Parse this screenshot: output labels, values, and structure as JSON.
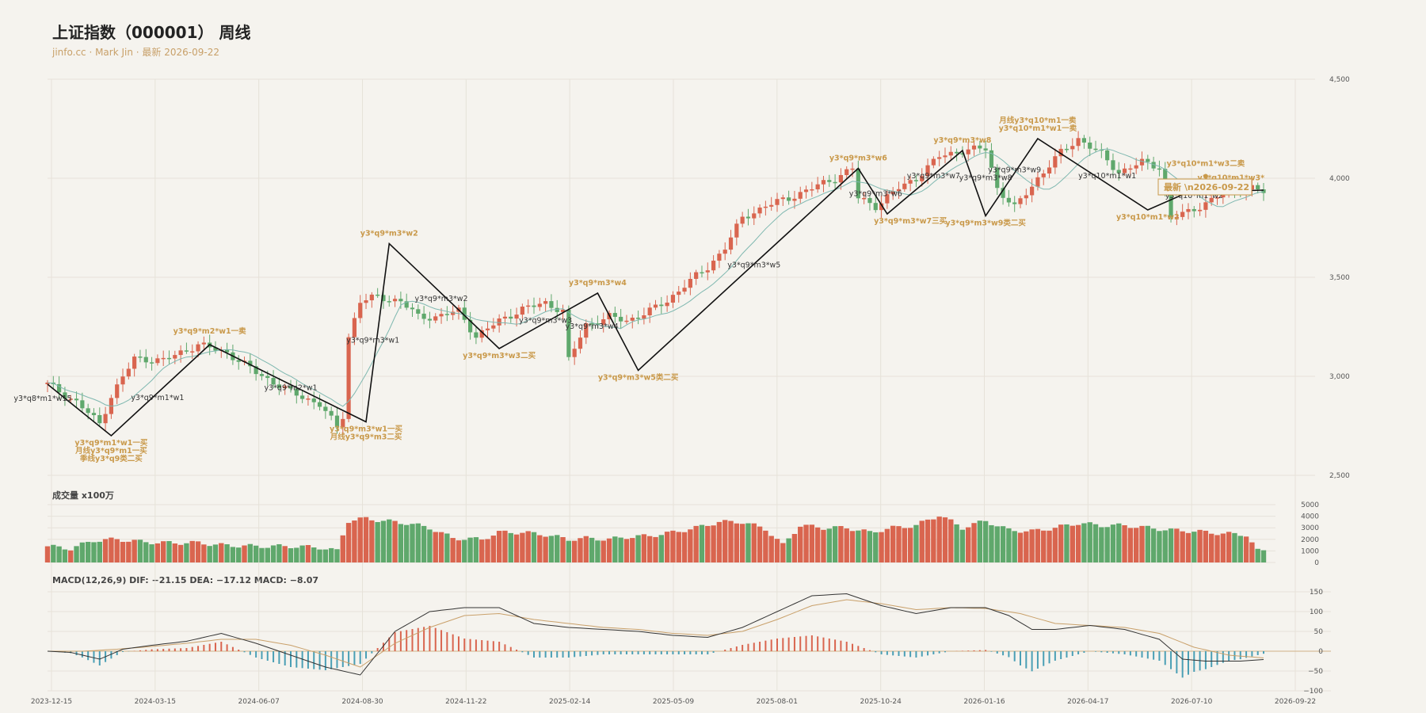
{
  "title": "上证指数（000001） 周线",
  "subtitle": "jinfo.cc · Mark Jin · 最新 2026-09-22",
  "volume_label": "成交量 x100万",
  "macd_label": "MACD(12,26,9) DIF: −21.15 DEA: −17.12 MACD: −8.07",
  "latest_badge": "最新 \\n2026-09-22",
  "colors": {
    "up": "#d9654f",
    "down": "#5fa86c",
    "ma": "#7fb8b0",
    "stroke": "#111111",
    "gold": "#c9994a",
    "dif": "#333333",
    "dea": "#c9a06a",
    "hist_pos": "#d9654f",
    "hist_neg": "#4a9fb5",
    "bg": "#f5f3ee",
    "grid": "#e6e2d9"
  },
  "chart_data": {
    "type": "candlestick",
    "price_axis": {
      "ticks": [
        2500,
        3000,
        3500,
        4000,
        4500
      ],
      "ylim": [
        2500,
        4500
      ]
    },
    "volume_axis": {
      "ticks": [
        0,
        1000,
        2000,
        3000,
        4000,
        5000
      ],
      "ylim": [
        0,
        5000
      ]
    },
    "macd_axis": {
      "ticks": [
        -100,
        -50,
        0,
        50,
        100,
        150
      ],
      "ylim": [
        -100,
        150
      ]
    },
    "date_ticks": [
      "2023-12-15",
      "2024-03-15",
      "2024-06-07",
      "2024-08-30",
      "2024-11-22",
      "2025-02-14",
      "2025-05-09",
      "2025-08-01",
      "2025-10-24",
      "2026-01-16",
      "2026-04-17",
      "2026-07-10",
      "2026-09-22"
    ],
    "close_anchors": [
      [
        0,
        2960
      ],
      [
        5,
        2870
      ],
      [
        9,
        2760
      ],
      [
        11,
        2900
      ],
      [
        15,
        3090
      ],
      [
        20,
        3080
      ],
      [
        26,
        3160
      ],
      [
        31,
        3120
      ],
      [
        36,
        3020
      ],
      [
        42,
        2920
      ],
      [
        47,
        2860
      ],
      [
        50,
        2740
      ],
      [
        51,
        2800
      ],
      [
        52,
        3200
      ],
      [
        54,
        3380
      ],
      [
        57,
        3400
      ],
      [
        61,
        3380
      ],
      [
        64,
        3300
      ],
      [
        67,
        3300
      ],
      [
        71,
        3330
      ],
      [
        74,
        3200
      ],
      [
        78,
        3280
      ],
      [
        82,
        3340
      ],
      [
        86,
        3370
      ],
      [
        89,
        3330
      ],
      [
        90,
        3080
      ],
      [
        93,
        3260
      ],
      [
        97,
        3300
      ],
      [
        100,
        3280
      ],
      [
        104,
        3330
      ],
      [
        107,
        3380
      ],
      [
        110,
        3460
      ],
      [
        114,
        3550
      ],
      [
        117,
        3650
      ],
      [
        120,
        3800
      ],
      [
        124,
        3860
      ],
      [
        128,
        3900
      ],
      [
        132,
        3950
      ],
      [
        136,
        4000
      ],
      [
        139,
        4050
      ],
      [
        140,
        3900
      ],
      [
        143,
        3860
      ],
      [
        147,
        3950
      ],
      [
        150,
        4000
      ],
      [
        154,
        4110
      ],
      [
        158,
        4140
      ],
      [
        162,
        4150
      ],
      [
        164,
        3950
      ],
      [
        167,
        3850
      ],
      [
        171,
        4000
      ],
      [
        175,
        4130
      ],
      [
        178,
        4200
      ],
      [
        182,
        4120
      ],
      [
        185,
        4030
      ],
      [
        189,
        4080
      ],
      [
        192,
        4060
      ],
      [
        194,
        3800
      ],
      [
        197,
        3830
      ],
      [
        201,
        3890
      ],
      [
        204,
        3940
      ],
      [
        208,
        3950
      ],
      [
        210,
        3930
      ]
    ],
    "volume_anchors": [
      [
        0,
        1400
      ],
      [
        4,
        1200
      ],
      [
        8,
        1900
      ],
      [
        12,
        2000
      ],
      [
        16,
        1800
      ],
      [
        20,
        1700
      ],
      [
        26,
        1700
      ],
      [
        30,
        1500
      ],
      [
        36,
        1400
      ],
      [
        42,
        1400
      ],
      [
        47,
        1300
      ],
      [
        50,
        1000
      ],
      [
        51,
        2400
      ],
      [
        52,
        3600
      ],
      [
        55,
        3800
      ],
      [
        58,
        3600
      ],
      [
        62,
        3400
      ],
      [
        66,
        3000
      ],
      [
        70,
        2100
      ],
      [
        75,
        2000
      ],
      [
        78,
        2600
      ],
      [
        82,
        2600
      ],
      [
        86,
        2400
      ],
      [
        90,
        2000
      ],
      [
        93,
        2100
      ],
      [
        97,
        2000
      ],
      [
        100,
        2200
      ],
      [
        104,
        2300
      ],
      [
        108,
        2600
      ],
      [
        112,
        3000
      ],
      [
        116,
        3500
      ],
      [
        120,
        3500
      ],
      [
        124,
        2900
      ],
      [
        127,
        1500
      ],
      [
        130,
        3200
      ],
      [
        134,
        3000
      ],
      [
        138,
        3000
      ],
      [
        142,
        2600
      ],
      [
        146,
        3000
      ],
      [
        150,
        3200
      ],
      [
        154,
        4100
      ],
      [
        158,
        3000
      ],
      [
        162,
        3600
      ],
      [
        166,
        2800
      ],
      [
        170,
        2700
      ],
      [
        174,
        3000
      ],
      [
        178,
        3400
      ],
      [
        182,
        3200
      ],
      [
        186,
        3200
      ],
      [
        190,
        3000
      ],
      [
        194,
        2800
      ],
      [
        198,
        2700
      ],
      [
        203,
        2500
      ],
      [
        207,
        2400
      ],
      [
        209,
        1000
      ]
    ],
    "dif_anchors": [
      [
        0,
        0
      ],
      [
        4,
        -3
      ],
      [
        9,
        -20
      ],
      [
        13,
        5
      ],
      [
        18,
        15
      ],
      [
        24,
        25
      ],
      [
        30,
        45
      ],
      [
        36,
        20
      ],
      [
        42,
        -10
      ],
      [
        48,
        -40
      ],
      [
        54,
        -60
      ],
      [
        60,
        50
      ],
      [
        66,
        100
      ],
      [
        72,
        110
      ],
      [
        78,
        110
      ],
      [
        84,
        70
      ],
      [
        90,
        60
      ],
      [
        96,
        55
      ],
      [
        102,
        50
      ],
      [
        108,
        40
      ],
      [
        114,
        35
      ],
      [
        120,
        60
      ],
      [
        126,
        100
      ],
      [
        132,
        140
      ],
      [
        138,
        145
      ],
      [
        144,
        115
      ],
      [
        150,
        95
      ],
      [
        156,
        110
      ],
      [
        162,
        110
      ],
      [
        166,
        90
      ],
      [
        170,
        55
      ],
      [
        174,
        55
      ],
      [
        180,
        65
      ],
      [
        186,
        55
      ],
      [
        192,
        30
      ],
      [
        196,
        -20
      ],
      [
        200,
        -25
      ],
      [
        206,
        -25
      ],
      [
        210,
        -21
      ]
    ],
    "dea_anchors": [
      [
        0,
        0
      ],
      [
        6,
        0
      ],
      [
        12,
        5
      ],
      [
        18,
        12
      ],
      [
        24,
        20
      ],
      [
        30,
        30
      ],
      [
        36,
        30
      ],
      [
        42,
        15
      ],
      [
        48,
        -10
      ],
      [
        54,
        -40
      ],
      [
        60,
        20
      ],
      [
        66,
        60
      ],
      [
        72,
        90
      ],
      [
        78,
        95
      ],
      [
        84,
        80
      ],
      [
        90,
        70
      ],
      [
        96,
        60
      ],
      [
        102,
        55
      ],
      [
        108,
        45
      ],
      [
        114,
        40
      ],
      [
        120,
        50
      ],
      [
        126,
        80
      ],
      [
        132,
        115
      ],
      [
        138,
        130
      ],
      [
        144,
        120
      ],
      [
        150,
        105
      ],
      [
        156,
        110
      ],
      [
        162,
        108
      ],
      [
        168,
        95
      ],
      [
        174,
        70
      ],
      [
        180,
        65
      ],
      [
        186,
        60
      ],
      [
        192,
        45
      ],
      [
        198,
        10
      ],
      [
        204,
        -10
      ],
      [
        210,
        -17
      ]
    ],
    "zigzag": [
      [
        0,
        2960
      ],
      [
        11,
        2700
      ],
      [
        28,
        3160
      ],
      [
        55,
        2770
      ],
      [
        59,
        3670
      ],
      [
        78,
        3140
      ],
      [
        95,
        3420
      ],
      [
        102,
        3030
      ],
      [
        140,
        4050
      ],
      [
        145,
        3820
      ],
      [
        158,
        4140
      ],
      [
        162,
        3810
      ],
      [
        171,
        4200
      ],
      [
        190,
        3840
      ],
      [
        197,
        3930
      ],
      [
        210,
        3940
      ]
    ],
    "annotations": [
      {
        "lines": [
          "y3*q8*m1*w15"
        ],
        "i": 0,
        "p": 2900,
        "dx": -6,
        "dy": 6,
        "c": "dark"
      },
      {
        "lines": [
          "y3*q9*m1*w1一买",
          "月线y3*q9*m1一买",
          "季线y3*q9类二买"
        ],
        "i": 11,
        "p": 2700,
        "dx": 0,
        "dy": 12,
        "c": "gold"
      },
      {
        "lines": [
          "y3*q9*m1*w1"
        ],
        "i": 19,
        "p": 2880,
        "dx": 0,
        "dy": 0,
        "c": "dark"
      },
      {
        "lines": [
          "y3*q9*m2*w1一卖"
        ],
        "i": 28,
        "p": 3160,
        "dx": 0,
        "dy": -14,
        "c": "gold"
      },
      {
        "lines": [
          "y3*q9*m2*w1"
        ],
        "i": 42,
        "p": 2930,
        "dx": 0,
        "dy": 0,
        "c": "dark"
      },
      {
        "lines": [
          "y3*q9*m3*w1一买",
          "月线y3*q9*m3二买"
        ],
        "i": 55,
        "p": 2770,
        "dx": 0,
        "dy": 12,
        "c": "gold"
      },
      {
        "lines": [
          "y3*q9*m3*w1"
        ],
        "i": 57,
        "p": 3170,
        "dx": -6,
        "dy": 0,
        "c": "dark"
      },
      {
        "lines": [
          "y3*q9*m3*w2"
        ],
        "i": 59,
        "p": 3670,
        "dx": 0,
        "dy": -10,
        "c": "gold"
      },
      {
        "lines": [
          "y3*q9*m3*w2"
        ],
        "i": 68,
        "p": 3380,
        "dx": 0,
        "dy": 0,
        "c": "dark"
      },
      {
        "lines": [
          "y3*q9*m3*w3二买"
        ],
        "i": 78,
        "p": 3140,
        "dx": 0,
        "dy": 12,
        "c": "gold"
      },
      {
        "lines": [
          "y3*q9*m3*w3"
        ],
        "i": 86,
        "p": 3270,
        "dx": 0,
        "dy": 0,
        "c": "dark"
      },
      {
        "lines": [
          "y3*q9*m3*w4"
        ],
        "i": 95,
        "p": 3420,
        "dx": 0,
        "dy": -10,
        "c": "gold"
      },
      {
        "lines": [
          "y3*q9*m3*w4"
        ],
        "i": 94,
        "p": 3240,
        "dx": 0,
        "dy": 0,
        "c": "dark"
      },
      {
        "lines": [
          "y3*q9*m3*w5类二买"
        ],
        "i": 102,
        "p": 3030,
        "dx": 0,
        "dy": 12,
        "c": "gold"
      },
      {
        "lines": [
          "y3*q9*m3*w5"
        ],
        "i": 122,
        "p": 3550,
        "dx": 0,
        "dy": 0,
        "c": "dark"
      },
      {
        "lines": [
          "y3*q9*m3*w6"
        ],
        "i": 140,
        "p": 4050,
        "dx": 0,
        "dy": -10,
        "c": "gold"
      },
      {
        "lines": [
          "y3*q9*m3*w6"
        ],
        "i": 143,
        "p": 3910,
        "dx": 0,
        "dy": 0,
        "c": "dark"
      },
      {
        "lines": [
          "y3*q9*m3*w7三买"
        ],
        "i": 149,
        "p": 3820,
        "dx": 0,
        "dy": 12,
        "c": "gold"
      },
      {
        "lines": [
          "y3*q9*m3*w7"
        ],
        "i": 153,
        "p": 4000,
        "dx": 0,
        "dy": 0,
        "c": "dark"
      },
      {
        "lines": [
          "y3*q9*m3*w8"
        ],
        "i": 158,
        "p": 4140,
        "dx": 0,
        "dy": -10,
        "c": "gold"
      },
      {
        "lines": [
          "y3*q9*m3*w8"
        ],
        "i": 162,
        "p": 3990,
        "dx": 0,
        "dy": 0,
        "c": "dark"
      },
      {
        "lines": [
          "y3*q9*m3*w9类二买"
        ],
        "i": 162,
        "p": 3810,
        "dx": 0,
        "dy": 12,
        "c": "gold"
      },
      {
        "lines": [
          "y3*q9*m3*w9"
        ],
        "i": 167,
        "p": 4030,
        "dx": 0,
        "dy": 0,
        "c": "dark"
      },
      {
        "lines": [
          "月线y3*q10*m1一卖",
          "y3*q10*m1*w1一卖"
        ],
        "i": 171,
        "p": 4200,
        "dx": 0,
        "dy": -20,
        "c": "gold"
      },
      {
        "lines": [
          "y3*q10*m1*w1"
        ],
        "i": 183,
        "p": 4000,
        "dx": 0,
        "dy": 0,
        "c": "dark"
      },
      {
        "lines": [
          "y3*q10*m1*w2"
        ],
        "i": 190,
        "p": 3840,
        "dx": 0,
        "dy": 12,
        "c": "gold"
      },
      {
        "lines": [
          "y3*q10*m1*w2"
        ],
        "i": 198,
        "p": 3900,
        "dx": 0,
        "dy": 0,
        "c": "dark"
      },
      {
        "lines": [
          "y3*q10*m1*w3二卖"
        ],
        "i": 200,
        "p": 4030,
        "dx": 0,
        "dy": -8,
        "c": "gold"
      },
      {
        "lines": [
          "y3*q10*m1*w3*"
        ],
        "i": 203,
        "p": 3990,
        "dx": 10,
        "dy": 0,
        "c": "gold"
      }
    ]
  }
}
